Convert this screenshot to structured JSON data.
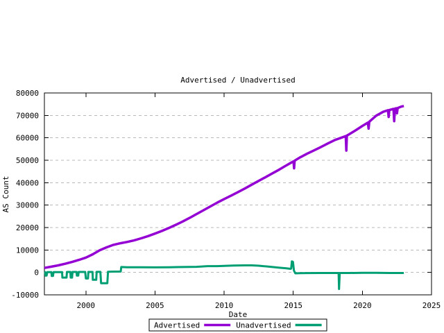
{
  "title": "Advertised / Unadvertised",
  "xlabel": "Date",
  "ylabel": "AS Count",
  "colors": {
    "advertised": "#9400d3",
    "unadvertised": "#009e73",
    "grid": "#b8b8b8",
    "axis": "#000000",
    "background": "#ffffff"
  },
  "legend": {
    "position": "below",
    "items": [
      {
        "label": "Advertised",
        "color": "#9400d3"
      },
      {
        "label": "Unadvertised",
        "color": "#009e73"
      }
    ]
  },
  "axes": {
    "x_tick_labels": [
      "2000",
      "2005",
      "2010",
      "2015",
      "2020",
      "2025"
    ],
    "x_ticks": [
      2000,
      2005,
      2010,
      2015,
      2020,
      2025
    ],
    "y_tick_labels": [
      "-10000",
      "0",
      "10000",
      "20000",
      "30000",
      "40000",
      "50000",
      "60000",
      "70000",
      "80000"
    ],
    "y_ticks": [
      -10000,
      0,
      10000,
      20000,
      30000,
      40000,
      50000,
      60000,
      70000,
      80000
    ],
    "x_range": [
      1997,
      2025
    ],
    "y_range": [
      -10000,
      80000
    ]
  },
  "chart_data": {
    "type": "line",
    "title": "Advertised / Unadvertised",
    "xlabel": "Date",
    "ylabel": "AS Count",
    "xlim": [
      1997,
      2025
    ],
    "ylim": [
      -10000,
      80000
    ],
    "grid": "horizontal-dashed",
    "legend_position": "below",
    "series": [
      {
        "name": "Advertised",
        "color": "#9400d3",
        "width": 3.5,
        "points": [
          [
            1997.0,
            2000
          ],
          [
            1997.5,
            2550
          ],
          [
            1998.0,
            3150
          ],
          [
            1998.5,
            3850
          ],
          [
            1999.0,
            4650
          ],
          [
            1999.5,
            5600
          ],
          [
            2000.0,
            6600
          ],
          [
            2000.5,
            8100
          ],
          [
            2001.0,
            9900
          ],
          [
            2001.5,
            11200
          ],
          [
            2002.0,
            12300
          ],
          [
            2002.5,
            13000
          ],
          [
            2003.0,
            13600
          ],
          [
            2003.5,
            14300
          ],
          [
            2004.0,
            15200
          ],
          [
            2004.5,
            16200
          ],
          [
            2005.0,
            17300
          ],
          [
            2005.5,
            18500
          ],
          [
            2006.0,
            19800
          ],
          [
            2006.5,
            21200
          ],
          [
            2007.0,
            22700
          ],
          [
            2007.5,
            24300
          ],
          [
            2008.0,
            26000
          ],
          [
            2008.5,
            27700
          ],
          [
            2009.0,
            29400
          ],
          [
            2009.5,
            31100
          ],
          [
            2010.0,
            32700
          ],
          [
            2010.5,
            34200
          ],
          [
            2011.0,
            35800
          ],
          [
            2011.5,
            37400
          ],
          [
            2012.0,
            39100
          ],
          [
            2012.5,
            40800
          ],
          [
            2013.0,
            42500
          ],
          [
            2013.5,
            44200
          ],
          [
            2014.0,
            45900
          ],
          [
            2014.5,
            47700
          ],
          [
            2014.95,
            49300
          ],
          [
            2015.02,
            49500
          ],
          [
            2015.06,
            46400
          ],
          [
            2015.1,
            49800
          ],
          [
            2015.5,
            51300
          ],
          [
            2016.0,
            52900
          ],
          [
            2016.5,
            54400
          ],
          [
            2017.0,
            55900
          ],
          [
            2017.5,
            57500
          ],
          [
            2018.0,
            59000
          ],
          [
            2018.5,
            60100
          ],
          [
            2018.8,
            60800
          ],
          [
            2018.84,
            54300
          ],
          [
            2018.88,
            61000
          ],
          [
            2019.0,
            61400
          ],
          [
            2019.5,
            63300
          ],
          [
            2020.0,
            65300
          ],
          [
            2020.4,
            66800
          ],
          [
            2020.45,
            64100
          ],
          [
            2020.5,
            67200
          ],
          [
            2021.0,
            69900
          ],
          [
            2021.5,
            71600
          ],
          [
            2021.85,
            72300
          ],
          [
            2021.9,
            69300
          ],
          [
            2021.95,
            72400
          ],
          [
            2022.25,
            72900
          ],
          [
            2022.3,
            67400
          ],
          [
            2022.35,
            73000
          ],
          [
            2022.45,
            73200
          ],
          [
            2022.5,
            70900
          ],
          [
            2022.55,
            73300
          ],
          [
            2022.8,
            73900
          ],
          [
            2023.0,
            74200
          ]
        ]
      },
      {
        "name": "Unadvertised",
        "color": "#009e73",
        "width": 3,
        "points": [
          [
            1997.0,
            150
          ],
          [
            1997.05,
            150
          ],
          [
            1997.08,
            -1400
          ],
          [
            1997.16,
            -1400
          ],
          [
            1997.2,
            150
          ],
          [
            1997.5,
            150
          ],
          [
            1997.53,
            -1600
          ],
          [
            1997.62,
            -1600
          ],
          [
            1997.66,
            150
          ],
          [
            1998.0,
            150
          ],
          [
            1998.28,
            150
          ],
          [
            1998.3,
            -2300
          ],
          [
            1998.6,
            -2300
          ],
          [
            1998.63,
            200
          ],
          [
            1998.88,
            200
          ],
          [
            1998.9,
            -2300
          ],
          [
            1999.0,
            -2300
          ],
          [
            1999.03,
            200
          ],
          [
            1999.33,
            200
          ],
          [
            1999.35,
            -1400
          ],
          [
            1999.45,
            -1400
          ],
          [
            1999.48,
            200
          ],
          [
            1999.95,
            200
          ],
          [
            2000.0,
            -2700
          ],
          [
            2000.15,
            -2700
          ],
          [
            2000.18,
            200
          ],
          [
            2000.48,
            200
          ],
          [
            2000.5,
            -3300
          ],
          [
            2000.75,
            -3300
          ],
          [
            2000.78,
            250
          ],
          [
            2001.05,
            250
          ],
          [
            2001.1,
            -4800
          ],
          [
            2001.55,
            -4800
          ],
          [
            2001.6,
            300
          ],
          [
            2002.0,
            350
          ],
          [
            2002.52,
            400
          ],
          [
            2002.56,
            2400
          ],
          [
            2003.0,
            2300
          ],
          [
            2004.0,
            2300
          ],
          [
            2005.0,
            2250
          ],
          [
            2006.0,
            2300
          ],
          [
            2007.0,
            2400
          ],
          [
            2008.0,
            2500
          ],
          [
            2008.8,
            2800
          ],
          [
            2009.5,
            2800
          ],
          [
            2010.0,
            2900
          ],
          [
            2010.7,
            3050
          ],
          [
            2011.5,
            3150
          ],
          [
            2012.0,
            3150
          ],
          [
            2012.5,
            3000
          ],
          [
            2013.0,
            2700
          ],
          [
            2013.5,
            2400
          ],
          [
            2014.0,
            2100
          ],
          [
            2014.5,
            1800
          ],
          [
            2014.8,
            1600
          ],
          [
            2014.85,
            1700
          ],
          [
            2014.9,
            4900
          ],
          [
            2014.98,
            4700
          ],
          [
            2015.05,
            800
          ],
          [
            2015.15,
            -400
          ],
          [
            2015.5,
            -350
          ],
          [
            2016.0,
            -300
          ],
          [
            2017.0,
            -250
          ],
          [
            2018.0,
            -250
          ],
          [
            2018.28,
            -250
          ],
          [
            2018.31,
            -7400
          ],
          [
            2018.36,
            -250
          ],
          [
            2019.0,
            -250
          ],
          [
            2020.0,
            -200
          ],
          [
            2021.0,
            -200
          ],
          [
            2022.0,
            -250
          ],
          [
            2023.0,
            -250
          ]
        ]
      }
    ]
  }
}
